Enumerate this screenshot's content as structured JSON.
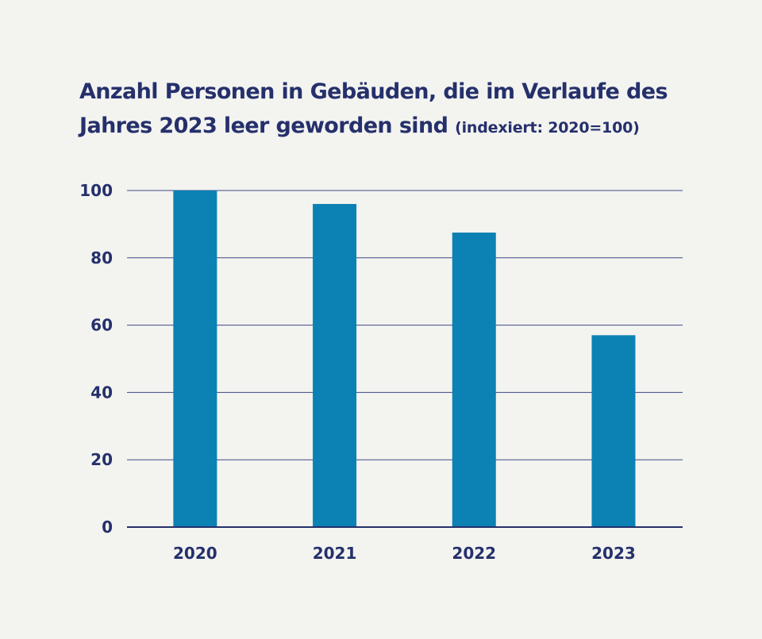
{
  "chart_data": {
    "type": "bar",
    "title_line1": "Anzahl Personen in Gebäuden, die im Verlaufe des",
    "title_line2": "Jahres 2023 leer geworden sind",
    "subtitle": "(indexiert: 2020=100)",
    "xlabel": "",
    "ylabel": "",
    "categories": [
      "2020",
      "2021",
      "2022",
      "2023"
    ],
    "values": [
      100,
      96,
      87.5,
      57
    ],
    "ylim": [
      0,
      100
    ],
    "yticks": [
      0,
      20,
      40,
      60,
      80,
      100
    ],
    "grid": true,
    "bar_color": "#0b82b3",
    "grid_color": "#3e4a86",
    "text_color": "#25306b"
  }
}
